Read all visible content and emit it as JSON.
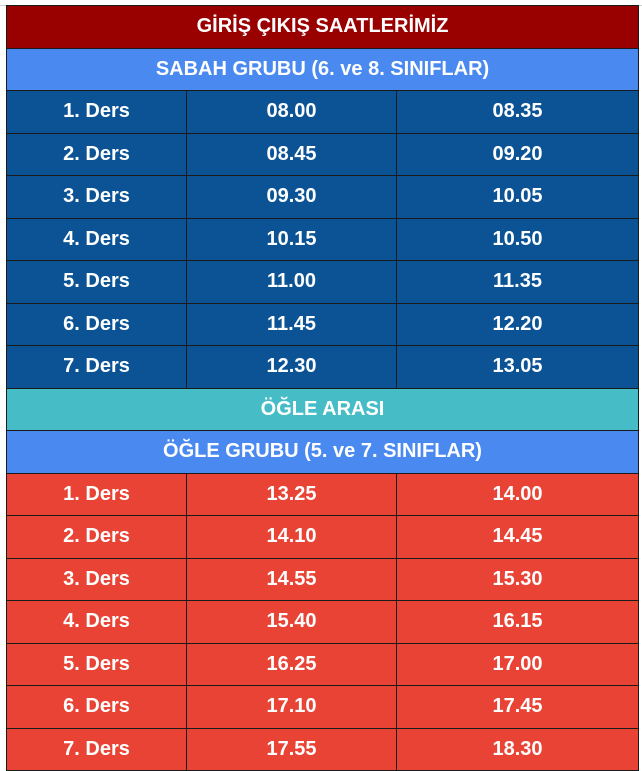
{
  "title": "GİRİŞ ÇIKIŞ SAATLERİMİZ",
  "colors": {
    "title": "#990000",
    "group_header": "#4a8af0",
    "morning_rows": "#0b5394",
    "break": "#46bdc6",
    "afternoon_rows": "#e94335"
  },
  "morning": {
    "header": "SABAH GRUBU (6. ve 8. SINIFLAR)",
    "rows": [
      {
        "lesson": "1. Ders",
        "start": "08.00",
        "end": "08.35"
      },
      {
        "lesson": "2. Ders",
        "start": "08.45",
        "end": "09.20"
      },
      {
        "lesson": "3. Ders",
        "start": "09.30",
        "end": "10.05"
      },
      {
        "lesson": "4. Ders",
        "start": "10.15",
        "end": "10.50"
      },
      {
        "lesson": "5. Ders",
        "start": "11.00",
        "end": "11.35"
      },
      {
        "lesson": "6. Ders",
        "start": "11.45",
        "end": "12.20"
      },
      {
        "lesson": "7. Ders",
        "start": "12.30",
        "end": "13.05"
      }
    ]
  },
  "break": "ÖĞLE ARASI",
  "afternoon": {
    "header": "ÖĞLE GRUBU (5. ve 7. SINIFLAR)",
    "rows": [
      {
        "lesson": "1. Ders",
        "start": "13.25",
        "end": "14.00"
      },
      {
        "lesson": "2. Ders",
        "start": "14.10",
        "end": "14.45"
      },
      {
        "lesson": "3. Ders",
        "start": "14.55",
        "end": "15.30"
      },
      {
        "lesson": "4. Ders",
        "start": "15.40",
        "end": "16.15"
      },
      {
        "lesson": "5. Ders",
        "start": "16.25",
        "end": "17.00"
      },
      {
        "lesson": "6. Ders",
        "start": "17.10",
        "end": "17.45"
      },
      {
        "lesson": "7. Ders",
        "start": "17.55",
        "end": "18.30"
      }
    ]
  }
}
